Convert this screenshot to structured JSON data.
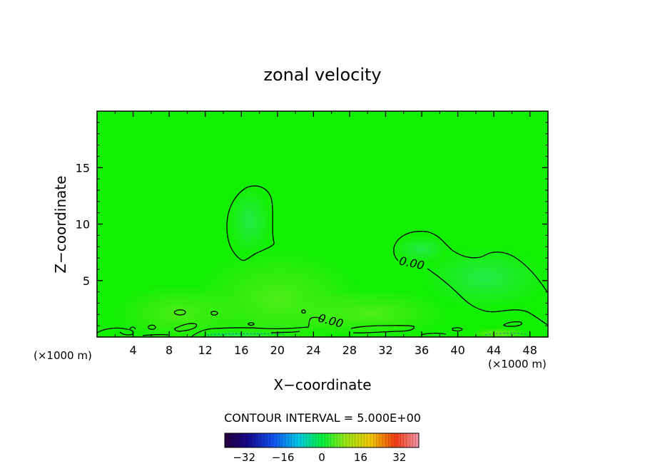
{
  "chart_data": {
    "type": "contour",
    "title": "zonal velocity",
    "xlabel": "X−coordinate",
    "ylabel": "Z−coordinate",
    "x_unit_label_left": "(×1000 m)",
    "x_unit_label_right": "(×1000 m)",
    "xlim": [
      0,
      50
    ],
    "ylim": [
      0,
      20
    ],
    "xticks": [
      4,
      8,
      12,
      16,
      20,
      24,
      28,
      32,
      36,
      40,
      44,
      48
    ],
    "xtick_labels": [
      "4",
      "8",
      "12",
      "16",
      "20",
      "24",
      "28",
      "32",
      "36",
      "40",
      "44",
      "48"
    ],
    "yticks": [
      5,
      10,
      15
    ],
    "ytick_labels": [
      "5",
      "10",
      "15"
    ],
    "contour_labels": [
      {
        "text": "0.00",
        "x": 34.8,
        "y": 6.2,
        "rotation": 12
      },
      {
        "text": "0.00",
        "x": 25.8,
        "y": 1.1,
        "rotation": 15
      }
    ],
    "contour_interval_text": "CONTOUR INTERVAL = 5.000E+00",
    "colorbar": {
      "ticks": [
        -32,
        -16,
        0,
        16,
        32
      ],
      "tick_labels": [
        "−32",
        "−16",
        "0",
        "16",
        "32"
      ],
      "min": -40,
      "max": 40
    }
  }
}
